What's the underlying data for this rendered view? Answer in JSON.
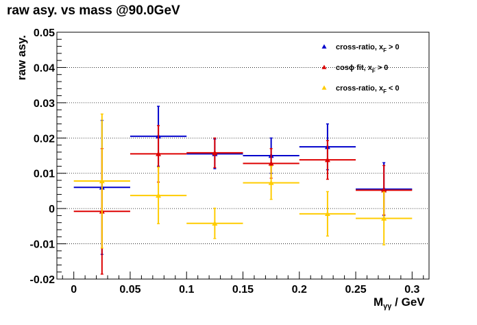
{
  "chart_data": {
    "type": "scatter",
    "title": "raw asy. vs mass @90.0GeV",
    "ylabel": "raw asy.",
    "xlabel": "M",
    "xlabel_sub": "γγ",
    "xlabel_unit": " / GeV",
    "xlim": [
      -0.015,
      0.315
    ],
    "ylim": [
      -0.02,
      0.05
    ],
    "x_ticks": [
      {
        "value": 0,
        "label": "0"
      },
      {
        "value": 0.05,
        "label": "0.05"
      },
      {
        "value": 0.1,
        "label": "0.1"
      },
      {
        "value": 0.15,
        "label": "0.15"
      },
      {
        "value": 0.2,
        "label": "0.2"
      },
      {
        "value": 0.25,
        "label": "0.25"
      },
      {
        "value": 0.3,
        "label": "0.3"
      }
    ],
    "y_ticks": [
      {
        "value": -0.02,
        "label": "-0.02"
      },
      {
        "value": -0.01,
        "label": "-0.01"
      },
      {
        "value": 0,
        "label": "0"
      },
      {
        "value": 0.01,
        "label": "0.01"
      },
      {
        "value": 0.02,
        "label": "0.02"
      },
      {
        "value": 0.03,
        "label": "0.03"
      },
      {
        "value": 0.04,
        "label": "0.04"
      },
      {
        "value": 0.05,
        "label": "0.05"
      }
    ],
    "grid": "horizontal dotted",
    "legend_position": "top-right",
    "series": [
      {
        "name": "cross-ratio, x",
        "name_sub": "F",
        "name_cond": " > 0",
        "color": "#0000cc",
        "points": [
          {
            "x": 0.025,
            "y": 0.006,
            "xerr": 0.025,
            "yerr": 0.019
          },
          {
            "x": 0.075,
            "y": 0.0205,
            "xerr": 0.025,
            "yerr": 0.0085
          },
          {
            "x": 0.125,
            "y": 0.0155,
            "xerr": 0.025,
            "yerr": 0.0042
          },
          {
            "x": 0.175,
            "y": 0.015,
            "xerr": 0.025,
            "yerr": 0.005
          },
          {
            "x": 0.225,
            "y": 0.0175,
            "xerr": 0.025,
            "yerr": 0.0065
          },
          {
            "x": 0.275,
            "y": 0.0055,
            "xerr": 0.025,
            "yerr": 0.0075
          }
        ]
      },
      {
        "name": "cosϕ fit, x",
        "name_sub": "F",
        "name_cond": " > 0",
        "color": "#dd0000",
        "points": [
          {
            "x": 0.025,
            "y": -0.0008,
            "xerr": 0.025,
            "yerr": 0.0178
          },
          {
            "x": 0.075,
            "y": 0.0155,
            "xerr": 0.025,
            "yerr": 0.008
          },
          {
            "x": 0.125,
            "y": 0.0158,
            "xerr": 0.025,
            "yerr": 0.0042
          },
          {
            "x": 0.175,
            "y": 0.0128,
            "xerr": 0.025,
            "yerr": 0.0042
          },
          {
            "x": 0.225,
            "y": 0.0138,
            "xerr": 0.025,
            "yerr": 0.0055
          },
          {
            "x": 0.275,
            "y": 0.0052,
            "xerr": 0.025,
            "yerr": 0.007
          }
        ]
      },
      {
        "name": "cross-ratio, x",
        "name_sub": "F",
        "name_cond": " < 0",
        "color": "#ffcc00",
        "points": [
          {
            "x": 0.025,
            "y": 0.0078,
            "xerr": 0.025,
            "yerr": 0.019
          },
          {
            "x": 0.075,
            "y": 0.0037,
            "xerr": 0.025,
            "yerr": 0.008
          },
          {
            "x": 0.125,
            "y": -0.0042,
            "xerr": 0.025,
            "yerr": 0.0043
          },
          {
            "x": 0.175,
            "y": 0.0073,
            "xerr": 0.025,
            "yerr": 0.0047
          },
          {
            "x": 0.225,
            "y": -0.0015,
            "xerr": 0.025,
            "yerr": 0.0063
          },
          {
            "x": 0.275,
            "y": -0.0028,
            "xerr": 0.025,
            "yerr": 0.0075
          }
        ]
      }
    ]
  }
}
